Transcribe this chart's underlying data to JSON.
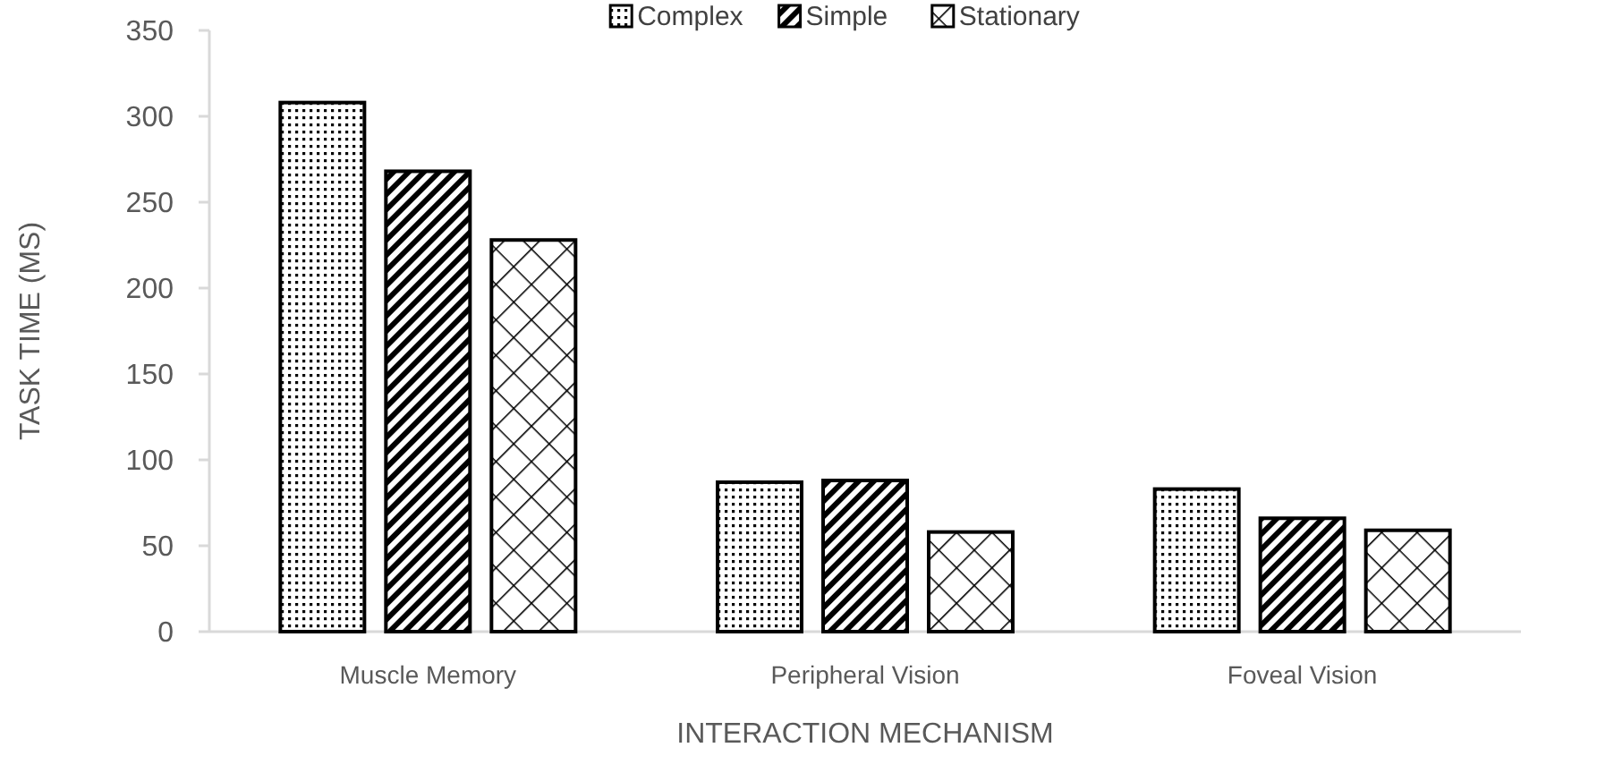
{
  "chart_data": {
    "type": "bar",
    "xlabel": "INTERACTION MECHANISM",
    "ylabel": "TASK TIME (MS)",
    "categories": [
      "Muscle Memory",
      "Peripheral Vision",
      "Foveal Vision"
    ],
    "series": [
      {
        "name": "Complex",
        "color": "#000000",
        "values": [
          308,
          87,
          83
        ]
      },
      {
        "name": "Simple",
        "color": "#000000",
        "values": [
          268,
          88,
          66
        ]
      },
      {
        "name": "Stationary",
        "color": "#000000",
        "values": [
          228,
          58,
          59
        ]
      }
    ],
    "ylim": [
      0,
      350
    ],
    "yticks": [
      0,
      50,
      100,
      150,
      200,
      250,
      300,
      350
    ],
    "legend": "top"
  }
}
